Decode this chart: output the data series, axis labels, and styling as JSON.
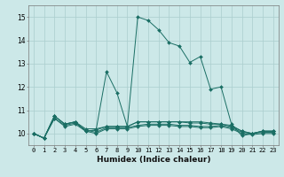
{
  "xlabel": "Humidex (Indice chaleur)",
  "bg_color": "#cce8e8",
  "grid_color": "#aacece",
  "line_color": "#1a6e64",
  "xlim": [
    -0.5,
    23.5
  ],
  "ylim": [
    9.5,
    15.5
  ],
  "yticks": [
    10,
    11,
    12,
    13,
    14,
    15
  ],
  "xticks": [
    0,
    1,
    2,
    3,
    4,
    5,
    6,
    7,
    8,
    9,
    10,
    11,
    12,
    13,
    14,
    15,
    16,
    17,
    18,
    19,
    20,
    21,
    22,
    23
  ],
  "series": [
    [
      10.0,
      9.8,
      10.75,
      10.4,
      10.5,
      10.1,
      10.15,
      12.65,
      11.75,
      10.3,
      15.0,
      14.85,
      14.45,
      13.9,
      13.75,
      13.05,
      13.3,
      11.9,
      12.0,
      10.4,
      9.9,
      10.0,
      10.1,
      10.1
    ],
    [
      10.0,
      9.8,
      10.75,
      10.4,
      10.5,
      10.1,
      10.15,
      10.3,
      10.3,
      10.3,
      10.5,
      10.5,
      10.5,
      10.5,
      10.5,
      10.5,
      10.5,
      10.45,
      10.4,
      10.35,
      10.1,
      10.0,
      10.1,
      10.1
    ],
    [
      10.0,
      9.8,
      10.75,
      10.4,
      10.5,
      10.2,
      10.2,
      10.3,
      10.3,
      10.3,
      10.5,
      10.5,
      10.5,
      10.5,
      10.5,
      10.45,
      10.45,
      10.4,
      10.4,
      10.3,
      10.1,
      10.0,
      10.1,
      10.1
    ],
    [
      10.0,
      9.8,
      10.65,
      10.35,
      10.45,
      10.15,
      10.05,
      10.25,
      10.25,
      10.25,
      10.35,
      10.4,
      10.4,
      10.4,
      10.35,
      10.35,
      10.3,
      10.3,
      10.35,
      10.25,
      10.05,
      10.0,
      10.05,
      10.05
    ],
    [
      10.0,
      9.8,
      10.65,
      10.3,
      10.4,
      10.1,
      10.0,
      10.2,
      10.2,
      10.2,
      10.3,
      10.35,
      10.35,
      10.35,
      10.3,
      10.3,
      10.25,
      10.25,
      10.3,
      10.2,
      10.0,
      9.95,
      10.0,
      10.0
    ]
  ]
}
